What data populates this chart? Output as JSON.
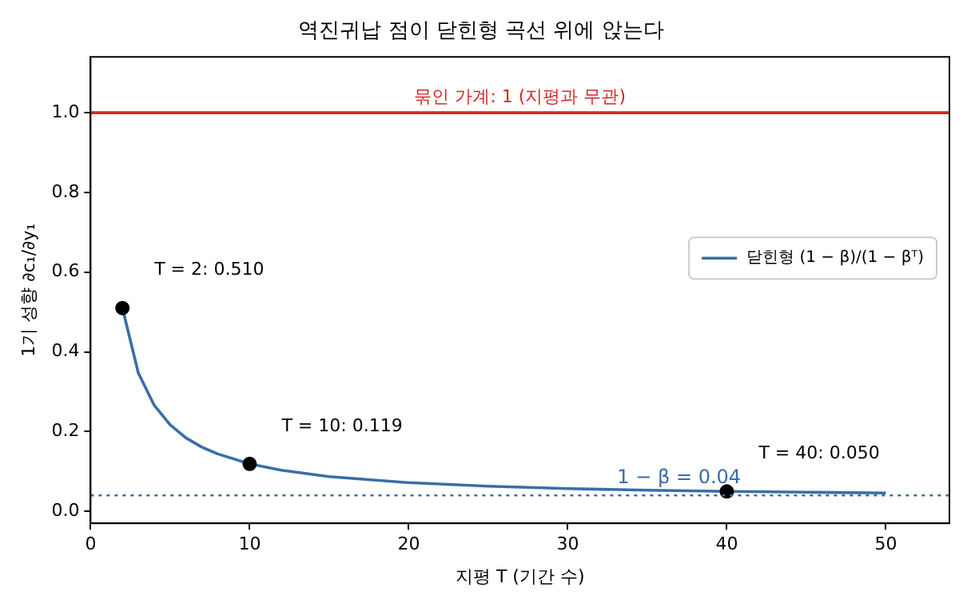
{
  "chart_data": {
    "type": "line",
    "title": "역진귀납 점이 닫힌형 곡선 위에 앉는다",
    "xlabel": "지평 T (기간 수)",
    "ylabel": "1기 성향 ∂c₁/∂y₁",
    "series": [
      {
        "name": "닫힌형 (1 − β)/(1 − βᵀ)",
        "color": "#3a6ea5",
        "marker": "none",
        "x": [
          2,
          3,
          4,
          5,
          6,
          7,
          8,
          10,
          12,
          15,
          20,
          25,
          30,
          35,
          40,
          45,
          50
        ],
        "values": [
          0.51,
          0.347,
          0.266,
          0.217,
          0.184,
          0.161,
          0.144,
          0.119,
          0.103,
          0.087,
          0.072,
          0.063,
          0.057,
          0.053,
          0.05,
          0.048,
          0.046
        ]
      },
      {
        "type": "scatter",
        "color": "#000000",
        "marker": "circle",
        "x": [
          2,
          10,
          40
        ],
        "values": [
          0.51,
          0.119,
          0.05
        ]
      }
    ],
    "annotations": [
      {
        "text": "T = 2: 0.510",
        "x": 2,
        "y": 0.51
      },
      {
        "text": "T = 10: 0.119",
        "x": 10,
        "y": 0.119
      },
      {
        "text": "T = 40: 0.050",
        "x": 40,
        "y": 0.05
      }
    ],
    "ref_lines": [
      {
        "axis": "y",
        "value": 1,
        "label": "묶인 가계: 1 (지평과 무관)",
        "color": "#d62728",
        "line_style": "solid"
      },
      {
        "axis": "y",
        "value": 0.04,
        "label": "1 − β = 0.04",
        "color": "#3a6ea5",
        "line_style": "dotted"
      }
    ],
    "xlim": [
      0,
      54
    ],
    "xticks": [
      0,
      10,
      20,
      30,
      40,
      50
    ],
    "ylim": [
      -0.03,
      1.14
    ],
    "yticks": [
      {
        "value": 0,
        "label": "0.0"
      },
      0.2,
      0.4,
      0.6,
      0.8,
      {
        "value": 1,
        "label": "1.0"
      }
    ],
    "grid": false,
    "legend": "center right"
  }
}
